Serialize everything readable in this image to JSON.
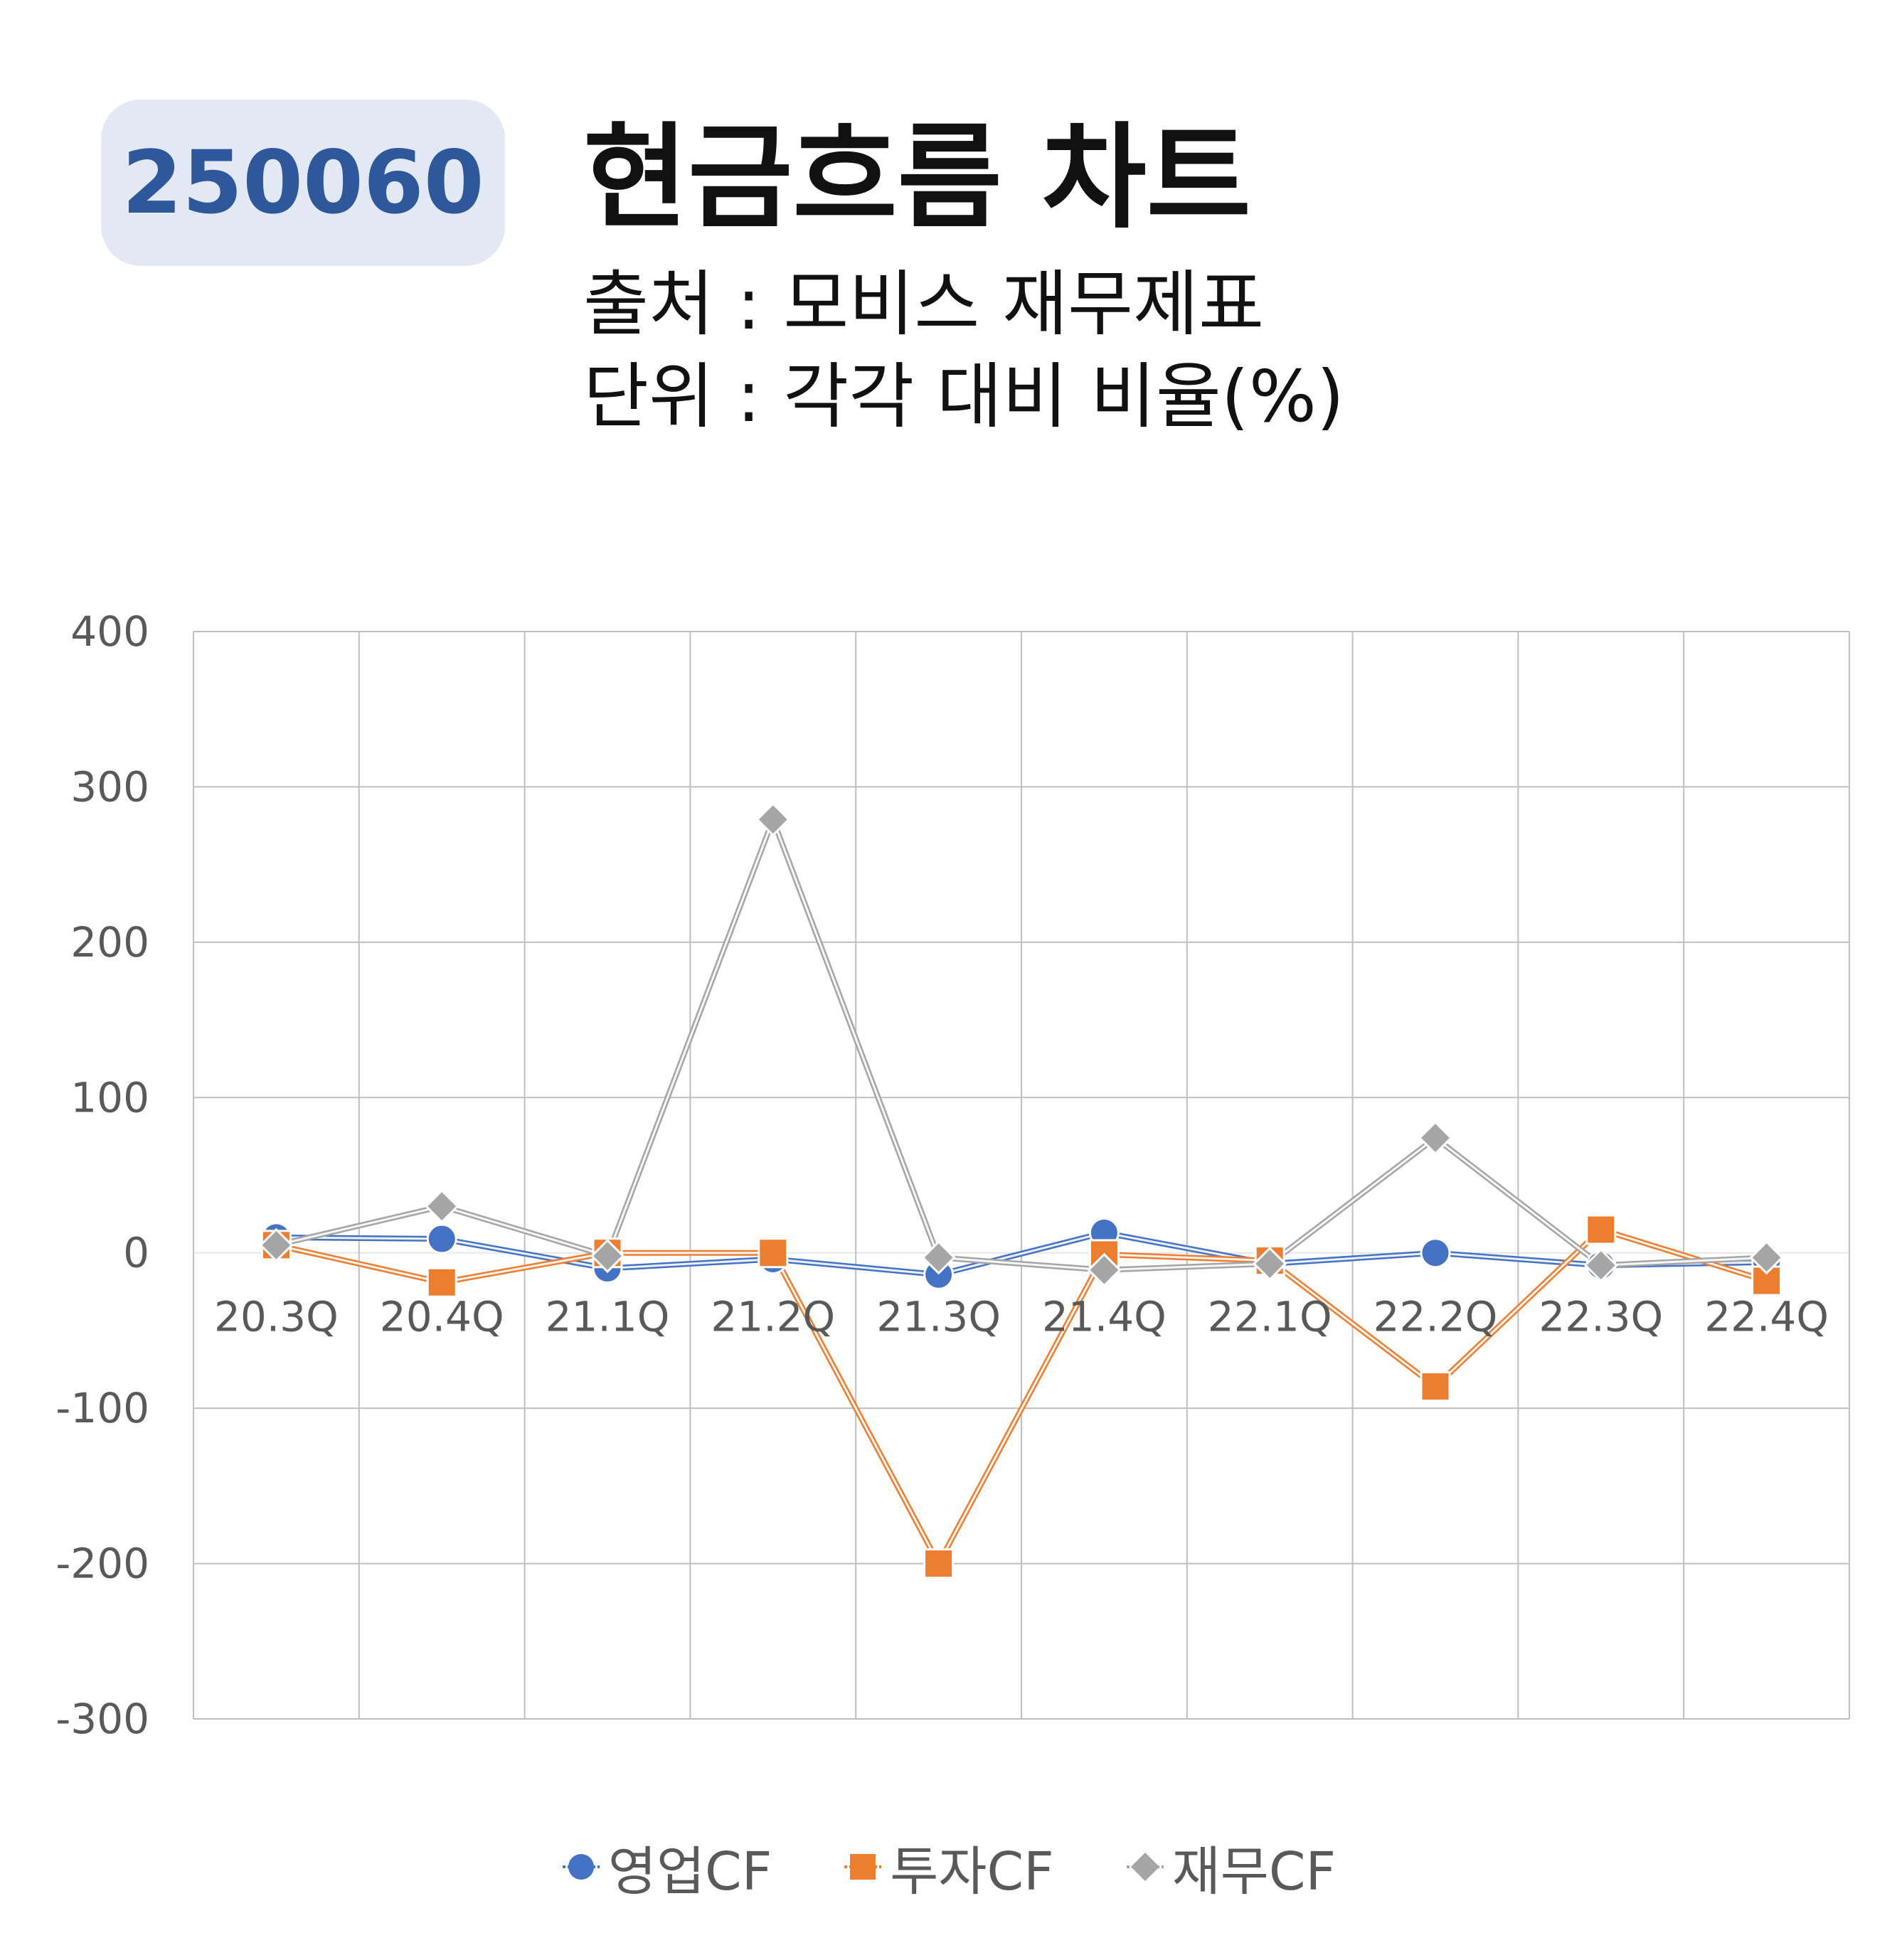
{
  "header": {
    "code": "250060",
    "title": "현금흐름 차트",
    "source": "출처 : 모비스 재무제표",
    "unit": "단위 : 각각 대비 비율(%)"
  },
  "chart_data": {
    "type": "line",
    "categories": [
      "20.3Q",
      "20.4Q",
      "21.1Q",
      "21.2Q",
      "21.3Q",
      "21.4Q",
      "22.1Q",
      "22.2Q",
      "22.3Q",
      "22.4Q"
    ],
    "ylim": [
      -300,
      400
    ],
    "yticks": [
      "400",
      "300",
      "200",
      "100",
      "0",
      "-100",
      "-200",
      "-300"
    ],
    "grid": true,
    "legend_position": "bottom",
    "series": [
      {
        "name": "영업CF",
        "marker": "circle",
        "color": "#4472c4",
        "values": [
          10,
          9,
          -10,
          -4,
          -14,
          13,
          -7,
          0,
          -8,
          -6
        ]
      },
      {
        "name": "투자CF",
        "marker": "square",
        "color": "#ed7d31",
        "values": [
          5,
          -19,
          0,
          0,
          -200,
          -1,
          -5,
          -86,
          15,
          -18
        ]
      },
      {
        "name": "재무CF",
        "marker": "diamond",
        "color": "#a5a5a5",
        "values": [
          5,
          30,
          -2,
          279,
          -3,
          -11,
          -7,
          74,
          -8,
          -3
        ]
      }
    ]
  }
}
